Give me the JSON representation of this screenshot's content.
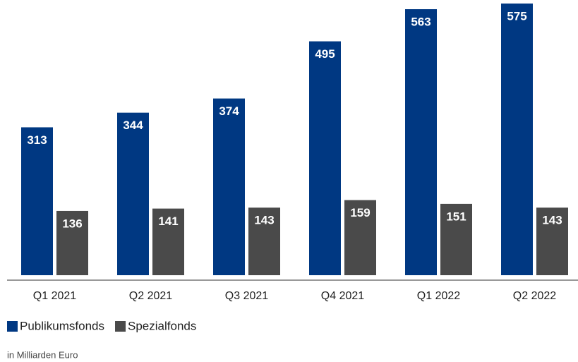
{
  "chart_data": {
    "type": "bar",
    "categories": [
      "Q1 2021",
      "Q2 2021",
      "Q3 2021",
      "Q4 2021",
      "Q1 2022",
      "Q2 2022"
    ],
    "series": [
      {
        "name": "Publikumsfonds",
        "color": "#003882",
        "values": [
          313,
          344,
          374,
          495,
          563,
          575
        ]
      },
      {
        "name": "Spezialfonds",
        "color": "#4a4a4a",
        "values": [
          136,
          141,
          143,
          159,
          151,
          143
        ]
      }
    ],
    "note": "in Milliarden Euro"
  }
}
